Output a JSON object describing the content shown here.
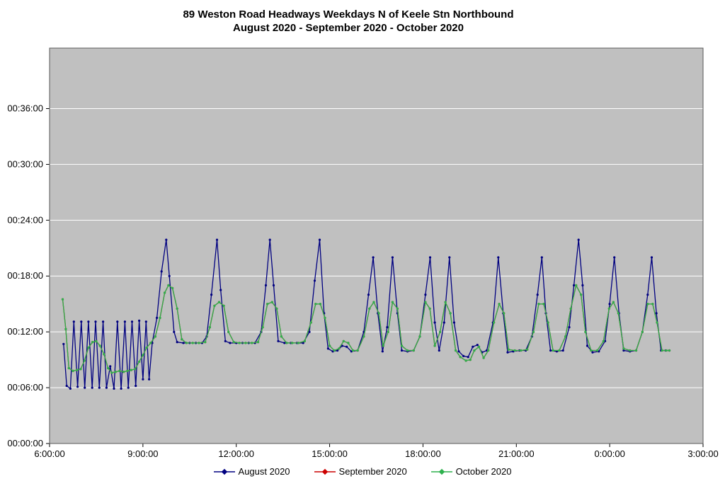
{
  "title": {
    "line1": "89 Weston Road Headways Weekdays N of Keele Stn Northbound",
    "line2": "August 2020 - September 2020 - October 2020"
  },
  "colors": {
    "plot_bg": "#c0c0c0",
    "gridline": "#ffffff",
    "plot_border": "#595959",
    "axis_text": "#000000",
    "august": "#000080",
    "september": "#cc0000",
    "october": "#2db14d"
  },
  "chart_data": {
    "type": "line",
    "title": "89 Weston Road Headways Weekdays N of Keele Stn Northbound August 2020 - September 2020 - October 2020",
    "x_axis": {
      "unit": "time of day",
      "range": [
        6,
        27
      ],
      "tick_values": [
        6,
        9,
        12,
        15,
        18,
        21,
        24,
        27
      ],
      "tick_labels": [
        "6:00:00",
        "9:00:00",
        "12:00:00",
        "15:00:00",
        "18:00:00",
        "21:00:00",
        "0:00:00",
        "3:00:00"
      ]
    },
    "y_axis": {
      "unit": "headway (h:mm:ss shown, minutes used)",
      "plot_max": 42.5,
      "tick_values": [
        0,
        6,
        12,
        18,
        24,
        30,
        36
      ],
      "tick_labels": [
        "00:00:00",
        "00:06:00",
        "00:12:00",
        "00:18:00",
        "00:24:00",
        "00:30:00",
        "00:36:00"
      ],
      "gridlines": true
    },
    "legend": {
      "position": "bottom-center"
    },
    "series": [
      {
        "name": "August 2020",
        "color_key": "august",
        "points": [
          [
            6.45,
            10.7
          ],
          [
            6.55,
            6.2
          ],
          [
            6.67,
            5.9
          ],
          [
            6.78,
            13.1
          ],
          [
            6.9,
            6.1
          ],
          [
            7.02,
            13.1
          ],
          [
            7.13,
            6.0
          ],
          [
            7.25,
            13.1
          ],
          [
            7.37,
            6.0
          ],
          [
            7.48,
            13.1
          ],
          [
            7.6,
            6.0
          ],
          [
            7.72,
            13.1
          ],
          [
            7.83,
            6.0
          ],
          [
            7.95,
            8.3
          ],
          [
            8.07,
            5.9
          ],
          [
            8.18,
            13.1
          ],
          [
            8.3,
            5.9
          ],
          [
            8.42,
            13.1
          ],
          [
            8.53,
            6.0
          ],
          [
            8.65,
            13.1
          ],
          [
            8.77,
            6.2
          ],
          [
            8.88,
            13.2
          ],
          [
            9.0,
            6.9
          ],
          [
            9.1,
            13.1
          ],
          [
            9.2,
            6.9
          ],
          [
            9.3,
            10.8
          ],
          [
            9.45,
            13.5
          ],
          [
            9.6,
            18.5
          ],
          [
            9.75,
            21.9
          ],
          [
            9.85,
            18.0
          ],
          [
            10.0,
            12.0
          ],
          [
            10.1,
            10.9
          ],
          [
            10.3,
            10.8
          ],
          [
            10.5,
            10.8
          ],
          [
            10.7,
            10.8
          ],
          [
            10.9,
            10.8
          ],
          [
            11.05,
            11.5
          ],
          [
            11.2,
            16.0
          ],
          [
            11.38,
            21.9
          ],
          [
            11.5,
            16.5
          ],
          [
            11.65,
            11.0
          ],
          [
            11.8,
            10.8
          ],
          [
            12.0,
            10.8
          ],
          [
            12.2,
            10.8
          ],
          [
            12.4,
            10.8
          ],
          [
            12.6,
            10.8
          ],
          [
            12.8,
            12.0
          ],
          [
            12.95,
            17.0
          ],
          [
            13.08,
            21.9
          ],
          [
            13.2,
            17.0
          ],
          [
            13.35,
            11.0
          ],
          [
            13.55,
            10.8
          ],
          [
            13.75,
            10.8
          ],
          [
            13.95,
            10.8
          ],
          [
            14.15,
            10.8
          ],
          [
            14.35,
            12.0
          ],
          [
            14.52,
            17.5
          ],
          [
            14.68,
            21.9
          ],
          [
            14.82,
            14.0
          ],
          [
            14.95,
            10.2
          ],
          [
            15.1,
            9.9
          ],
          [
            15.25,
            10.0
          ],
          [
            15.4,
            10.5
          ],
          [
            15.55,
            10.4
          ],
          [
            15.7,
            9.9
          ],
          [
            15.9,
            10.0
          ],
          [
            16.1,
            12.0
          ],
          [
            16.25,
            16.0
          ],
          [
            16.4,
            20.0
          ],
          [
            16.55,
            14.0
          ],
          [
            16.7,
            9.9
          ],
          [
            16.85,
            12.5
          ],
          [
            17.02,
            20.0
          ],
          [
            17.18,
            14.0
          ],
          [
            17.32,
            10.0
          ],
          [
            17.5,
            9.9
          ],
          [
            17.7,
            10.0
          ],
          [
            17.9,
            11.5
          ],
          [
            18.08,
            16.0
          ],
          [
            18.23,
            20.0
          ],
          [
            18.38,
            13.0
          ],
          [
            18.52,
            10.0
          ],
          [
            18.68,
            13.0
          ],
          [
            18.85,
            20.0
          ],
          [
            19.0,
            13.0
          ],
          [
            19.15,
            9.9
          ],
          [
            19.3,
            9.4
          ],
          [
            19.45,
            9.3
          ],
          [
            19.6,
            10.4
          ],
          [
            19.75,
            10.6
          ],
          [
            19.9,
            9.8
          ],
          [
            20.05,
            10.0
          ],
          [
            20.25,
            13.0
          ],
          [
            20.42,
            20.0
          ],
          [
            20.58,
            14.0
          ],
          [
            20.72,
            9.8
          ],
          [
            20.9,
            9.9
          ],
          [
            21.1,
            10.0
          ],
          [
            21.3,
            10.0
          ],
          [
            21.5,
            11.5
          ],
          [
            21.68,
            16.0
          ],
          [
            21.82,
            20.0
          ],
          [
            21.95,
            14.0
          ],
          [
            22.1,
            10.0
          ],
          [
            22.3,
            9.9
          ],
          [
            22.5,
            10.0
          ],
          [
            22.7,
            12.5
          ],
          [
            22.85,
            17.0
          ],
          [
            23.0,
            21.9
          ],
          [
            23.13,
            17.0
          ],
          [
            23.28,
            10.5
          ],
          [
            23.45,
            9.8
          ],
          [
            23.65,
            9.9
          ],
          [
            23.85,
            11.0
          ],
          [
            24.0,
            15.0
          ],
          [
            24.15,
            20.0
          ],
          [
            24.3,
            14.0
          ],
          [
            24.45,
            10.0
          ],
          [
            24.65,
            9.9
          ],
          [
            24.85,
            10.0
          ],
          [
            25.05,
            12.0
          ],
          [
            25.22,
            16.0
          ],
          [
            25.35,
            20.0
          ],
          [
            25.5,
            14.0
          ],
          [
            25.65,
            10.0
          ],
          [
            25.8,
            10.0
          ],
          [
            25.92,
            10.0
          ]
        ]
      },
      {
        "name": "September 2020",
        "color_key": "september",
        "points_same_as": "October 2020",
        "note": "line coincides with October 2020 and is hidden underneath it"
      },
      {
        "name": "October 2020",
        "color_key": "october",
        "points": [
          [
            6.42,
            15.5
          ],
          [
            6.52,
            12.3
          ],
          [
            6.62,
            8.1
          ],
          [
            6.75,
            7.8
          ],
          [
            6.88,
            7.9
          ],
          [
            7.0,
            8.0
          ],
          [
            7.12,
            8.9
          ],
          [
            7.25,
            10.3
          ],
          [
            7.38,
            10.9
          ],
          [
            7.5,
            11.0
          ],
          [
            7.62,
            10.5
          ],
          [
            7.75,
            9.6
          ],
          [
            7.88,
            8.1
          ],
          [
            8.0,
            7.6
          ],
          [
            8.12,
            7.7
          ],
          [
            8.25,
            7.8
          ],
          [
            8.38,
            7.7
          ],
          [
            8.5,
            7.8
          ],
          [
            8.62,
            7.9
          ],
          [
            8.75,
            8.0
          ],
          [
            8.88,
            8.8
          ],
          [
            9.0,
            9.5
          ],
          [
            9.12,
            10.3
          ],
          [
            9.25,
            10.8
          ],
          [
            9.4,
            11.5
          ],
          [
            9.55,
            13.5
          ],
          [
            9.7,
            16.2
          ],
          [
            9.82,
            17.0
          ],
          [
            9.95,
            16.7
          ],
          [
            10.1,
            14.5
          ],
          [
            10.25,
            11.2
          ],
          [
            10.4,
            10.8
          ],
          [
            10.6,
            10.8
          ],
          [
            10.8,
            10.8
          ],
          [
            11.0,
            10.9
          ],
          [
            11.15,
            12.5
          ],
          [
            11.3,
            14.8
          ],
          [
            11.45,
            15.2
          ],
          [
            11.6,
            14.8
          ],
          [
            11.75,
            12.0
          ],
          [
            11.92,
            10.9
          ],
          [
            12.1,
            10.8
          ],
          [
            12.3,
            10.8
          ],
          [
            12.5,
            10.8
          ],
          [
            12.7,
            10.9
          ],
          [
            12.85,
            12.5
          ],
          [
            13.0,
            15.0
          ],
          [
            13.15,
            15.2
          ],
          [
            13.3,
            14.5
          ],
          [
            13.45,
            11.5
          ],
          [
            13.62,
            10.8
          ],
          [
            13.8,
            10.8
          ],
          [
            14.0,
            10.8
          ],
          [
            14.2,
            11.0
          ],
          [
            14.4,
            13.0
          ],
          [
            14.55,
            15.0
          ],
          [
            14.7,
            15.0
          ],
          [
            14.85,
            13.5
          ],
          [
            15.0,
            10.5
          ],
          [
            15.15,
            10.0
          ],
          [
            15.3,
            10.2
          ],
          [
            15.45,
            11.0
          ],
          [
            15.6,
            10.8
          ],
          [
            15.75,
            10.0
          ],
          [
            15.9,
            10.0
          ],
          [
            16.1,
            11.5
          ],
          [
            16.28,
            14.5
          ],
          [
            16.42,
            15.2
          ],
          [
            16.58,
            14.0
          ],
          [
            16.72,
            10.5
          ],
          [
            16.88,
            12.0
          ],
          [
            17.02,
            15.2
          ],
          [
            17.18,
            14.5
          ],
          [
            17.32,
            10.5
          ],
          [
            17.5,
            10.0
          ],
          [
            17.7,
            10.0
          ],
          [
            17.9,
            11.5
          ],
          [
            18.08,
            15.2
          ],
          [
            18.22,
            14.5
          ],
          [
            18.38,
            10.5
          ],
          [
            18.55,
            12.0
          ],
          [
            18.72,
            15.2
          ],
          [
            18.88,
            14.0
          ],
          [
            19.05,
            10.0
          ],
          [
            19.2,
            9.3
          ],
          [
            19.38,
            8.9
          ],
          [
            19.52,
            9.0
          ],
          [
            19.65,
            10.0
          ],
          [
            19.8,
            10.4
          ],
          [
            19.95,
            9.2
          ],
          [
            20.1,
            10.0
          ],
          [
            20.28,
            13.0
          ],
          [
            20.45,
            15.0
          ],
          [
            20.6,
            14.0
          ],
          [
            20.75,
            10.1
          ],
          [
            20.95,
            10.0
          ],
          [
            21.15,
            10.0
          ],
          [
            21.35,
            10.1
          ],
          [
            21.55,
            12.0
          ],
          [
            21.72,
            15.0
          ],
          [
            21.88,
            15.0
          ],
          [
            22.02,
            13.0
          ],
          [
            22.18,
            10.0
          ],
          [
            22.38,
            10.0
          ],
          [
            22.58,
            11.5
          ],
          [
            22.75,
            14.5
          ],
          [
            22.92,
            17.0
          ],
          [
            23.08,
            16.0
          ],
          [
            23.22,
            12.0
          ],
          [
            23.4,
            10.0
          ],
          [
            23.6,
            10.0
          ],
          [
            23.8,
            11.0
          ],
          [
            23.98,
            14.5
          ],
          [
            24.12,
            15.2
          ],
          [
            24.28,
            14.0
          ],
          [
            24.45,
            10.2
          ],
          [
            24.65,
            10.0
          ],
          [
            24.85,
            10.0
          ],
          [
            25.05,
            12.0
          ],
          [
            25.22,
            15.0
          ],
          [
            25.38,
            15.0
          ],
          [
            25.52,
            13.0
          ],
          [
            25.68,
            10.0
          ],
          [
            25.82,
            10.0
          ],
          [
            25.92,
            10.0
          ]
        ]
      }
    ]
  }
}
